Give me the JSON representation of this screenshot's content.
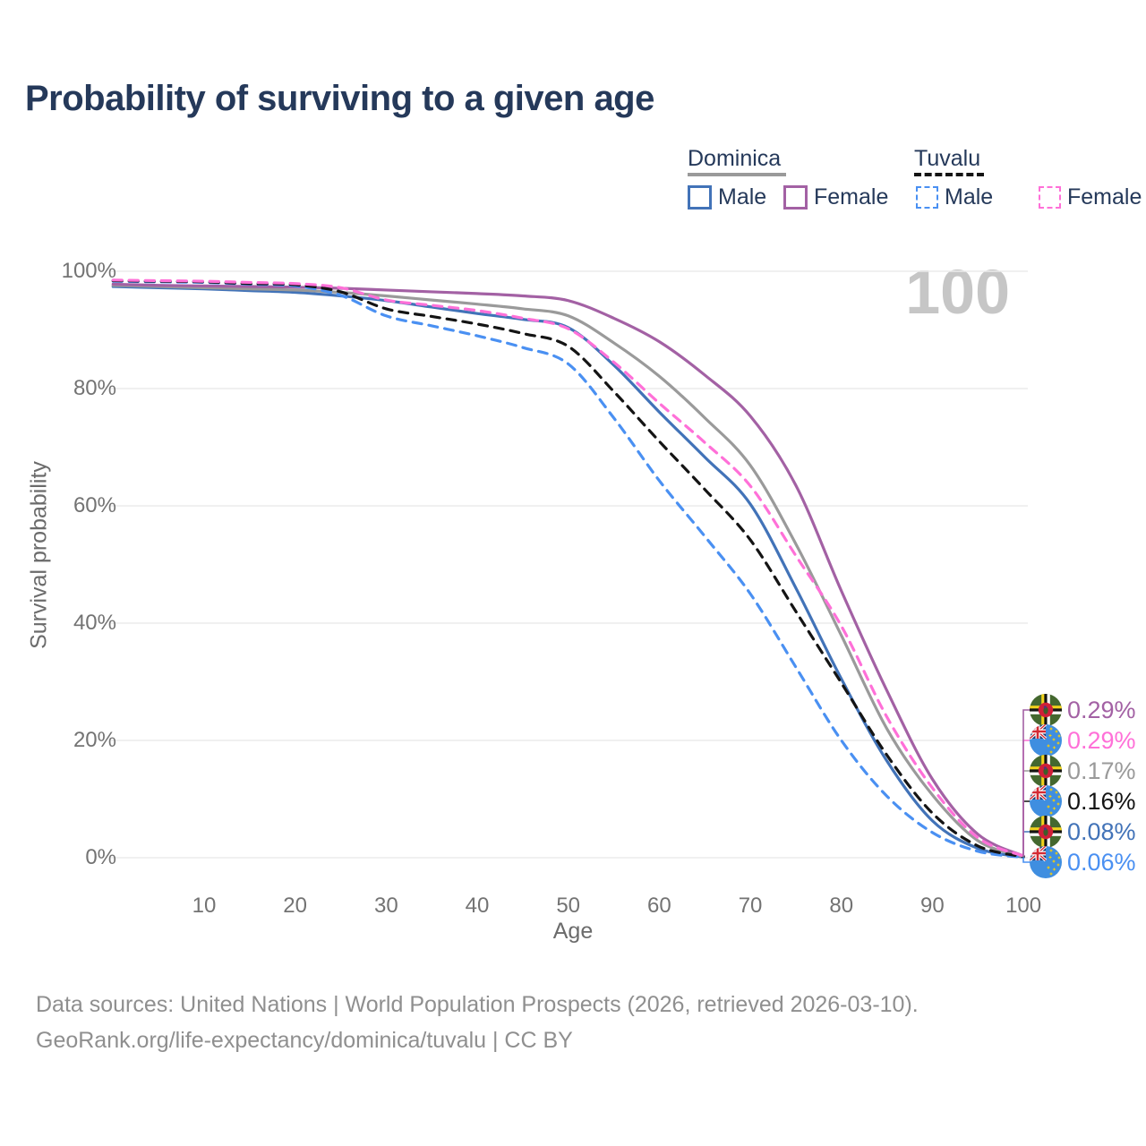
{
  "watermark_age": "100",
  "legend": {
    "dominica": "Dominica",
    "tuvalu": "Tuvalu",
    "male": "Male",
    "female": "Female"
  },
  "footer": {
    "line1": "Data sources: United Nations | World Population Prospects (2026, retrieved 2026-03-10).",
    "line2": "GeoRank.org/life-expectancy/dominica/tuvalu | CC BY"
  },
  "chart_data": {
    "type": "line",
    "title": "Probability of surviving to a given age",
    "xlabel": "Age",
    "ylabel": "Survival probability",
    "xlim": [
      0,
      100
    ],
    "ylim": [
      0,
      100
    ],
    "grid": "horizontal",
    "legend_position": "top-right",
    "x": [
      0,
      5,
      10,
      15,
      20,
      25,
      30,
      35,
      40,
      45,
      50,
      55,
      60,
      65,
      70,
      75,
      80,
      85,
      90,
      95,
      100
    ],
    "xticks": [
      10,
      20,
      30,
      40,
      50,
      60,
      70,
      80,
      90,
      100
    ],
    "ytick_values": [
      0,
      20,
      40,
      60,
      80,
      100
    ],
    "ytick_labels": [
      "0%",
      "20%",
      "40%",
      "60%",
      "80%",
      "100%"
    ],
    "series": [
      {
        "name": "Dominica Male",
        "country": "Dominica",
        "sex": "Male",
        "style": "solid",
        "color": "#4273b8",
        "flag": "dominica",
        "end_label": "0.08%",
        "label_slot": 4,
        "values": [
          97.4,
          97.2,
          97.0,
          96.7,
          96.4,
          95.8,
          95.0,
          93.9,
          92.8,
          91.8,
          90.4,
          84.0,
          76.0,
          68.3,
          60.3,
          46.0,
          30.5,
          16.5,
          6.3,
          1.6,
          0.08
        ]
      },
      {
        "name": "Dominica Both sexes",
        "country": "Dominica",
        "sex": "Both",
        "style": "solid",
        "color": "#9a9a9a",
        "flag": "dominica",
        "end_label": "0.17%",
        "label_slot": 2,
        "values": [
          97.6,
          97.4,
          97.2,
          97.0,
          96.8,
          96.4,
          95.8,
          95.1,
          94.4,
          93.6,
          92.4,
          87.8,
          82.1,
          75.0,
          66.9,
          53.5,
          37.9,
          22.0,
          10.7,
          2.9,
          0.17
        ]
      },
      {
        "name": "Dominica Female",
        "country": "Dominica",
        "sex": "Female",
        "style": "solid",
        "color": "#a361a4",
        "flag": "dominica",
        "end_label": "0.29%",
        "label_slot": 0,
        "values": [
          97.8,
          97.6,
          97.5,
          97.4,
          97.3,
          97.1,
          96.8,
          96.5,
          96.2,
          95.8,
          95.0,
          92.0,
          88.0,
          82.3,
          75.3,
          63.5,
          45.5,
          28.5,
          13.4,
          4.0,
          0.29
        ]
      },
      {
        "name": "Tuvalu Male",
        "country": "Tuvalu",
        "sex": "Male",
        "style": "dashed",
        "color": "#4a90f2",
        "flag": "tuvalu",
        "end_label": "0.06%",
        "label_slot": 5,
        "values": [
          98.3,
          98.2,
          98.1,
          97.8,
          97.5,
          95.9,
          92.4,
          90.7,
          89.0,
          87.0,
          84.2,
          75.0,
          64.3,
          54.8,
          45.0,
          32.5,
          20.0,
          10.5,
          4.3,
          1.1,
          0.06
        ]
      },
      {
        "name": "Tuvalu Both sexes",
        "country": "Tuvalu",
        "sex": "Both",
        "style": "dashed",
        "color": "#141414",
        "flag": "tuvalu",
        "end_label": "0.16%",
        "label_slot": 3,
        "values": [
          98.4,
          98.3,
          98.2,
          97.9,
          97.7,
          96.5,
          93.6,
          92.3,
          91.0,
          89.4,
          87.2,
          79.5,
          71.0,
          62.8,
          54.2,
          42.0,
          29.8,
          17.5,
          7.6,
          2.0,
          0.16
        ]
      },
      {
        "name": "Tuvalu Female",
        "country": "Tuvalu",
        "sex": "Female",
        "style": "dashed",
        "color": "#ff70d8",
        "flag": "tuvalu",
        "end_label": "0.29%",
        "label_slot": 1,
        "values": [
          98.5,
          98.4,
          98.3,
          98.1,
          97.9,
          97.2,
          95.1,
          94.2,
          93.3,
          92.0,
          90.2,
          84.5,
          77.5,
          70.8,
          63.4,
          51.5,
          39.5,
          24.0,
          11.9,
          3.4,
          0.29
        ]
      }
    ]
  }
}
